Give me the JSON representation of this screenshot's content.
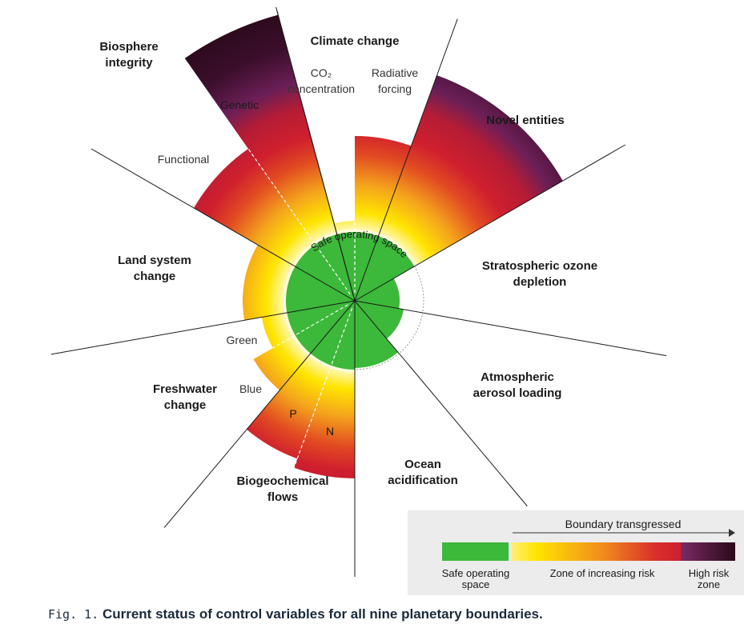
{
  "figure": {
    "caption_prefix": "Fig. 1.",
    "caption_text": "Current status of control variables for all nine planetary boundaries."
  },
  "center_label": "Safe operating space",
  "boundaries": {
    "climate_change": {
      "title": "Climate change",
      "co2_label_line1": "CO₂",
      "co2_label_line2": "concentration",
      "rf_label_line1": "Radiative",
      "rf_label_line2": "forcing",
      "status": "transgressed"
    },
    "novel_entities": {
      "title": "Novel entities",
      "status": "transgressed"
    },
    "ozone": {
      "title_line1": "Stratospheric ozone",
      "title_line2": "depletion",
      "status": "safe"
    },
    "aerosol": {
      "title_line1": "Atmospheric",
      "title_line2": "aerosol loading",
      "status": "safe"
    },
    "ocean": {
      "title_line1": "Ocean",
      "title_line2": "acidification",
      "status": "safe"
    },
    "biogeochemical": {
      "title_line1": "Biogeochemical",
      "title_line2": "flows",
      "p_label": "P",
      "n_label": "N",
      "status": "high risk"
    },
    "freshwater": {
      "title_line1": "Freshwater",
      "title_line2": "change",
      "green_label": "Green",
      "blue_label": "Blue",
      "status": "transgressed"
    },
    "land": {
      "title_line1": "Land system",
      "title_line2": "change",
      "status": "transgressed"
    },
    "biosphere": {
      "title_line1": "Biosphere",
      "title_line2": "integrity",
      "genetic_label": "Genetic",
      "functional_label": "Functional",
      "status": "high risk"
    }
  },
  "legend": {
    "arrow_label": "Boundary transgressed",
    "safe_label_line1": "Safe operating",
    "safe_label_line2": "space",
    "increasing_label": "Zone of increasing risk",
    "high_label_line1": "High risk",
    "high_label_line2": "zone"
  },
  "colors": {
    "safe": "#3cb83a",
    "zone_yellow": "#ffe500",
    "zone_orange": "#f29a1e",
    "zone_red": "#cf1f2e",
    "high_purple": "#6b1f57",
    "high_dark": "#2b0a1a",
    "legend_bg": "#ececec"
  }
}
